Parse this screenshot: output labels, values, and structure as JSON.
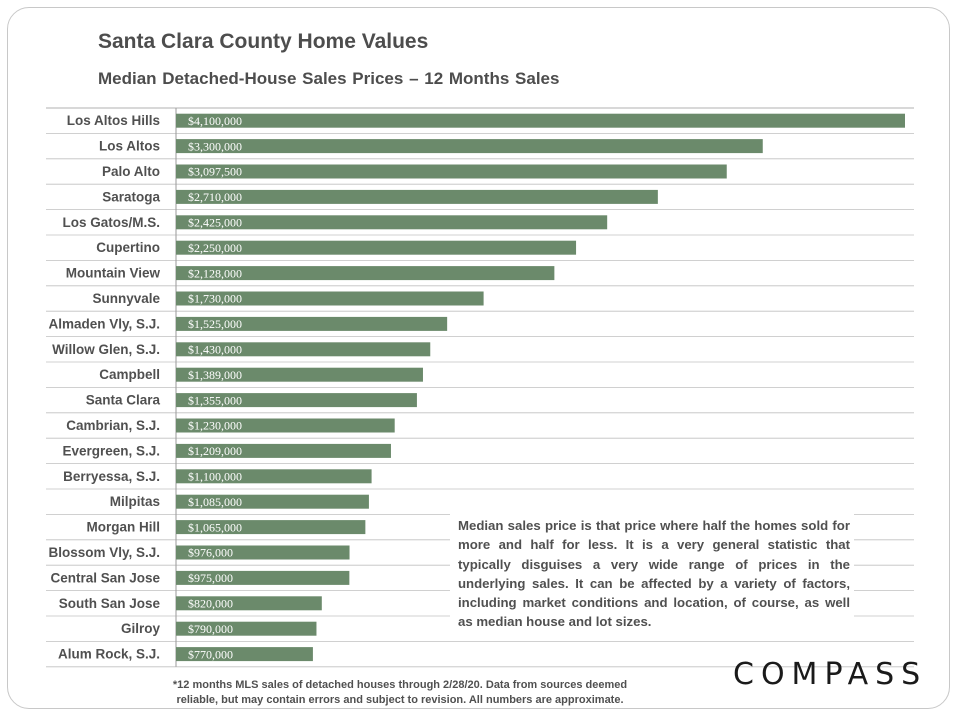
{
  "page": {
    "title": "Santa Clara County Home Values",
    "subtitle": "Median Detached-House  Sales Prices – 12 Months  Sales",
    "note": "Median sales price is that price where half the homes sold for more and half for less. It is a very general statistic that typically disguises a very wide range of prices in the underlying sales. It can be affected by a variety of factors, including market conditions and location, of course, as well as median house and lot sizes.",
    "footnote_line1": "*12 months MLS sales of detached houses through 2/28/20. Data from sources deemed",
    "footnote_line2": "reliable, but may contain errors and subject to revision. All numbers are approximate.",
    "logo": "COMPASS"
  },
  "colors": {
    "bar": "#6b8a6b",
    "gridline": "#c0c0c0",
    "label": "#505050"
  },
  "chart_data": {
    "type": "bar",
    "orientation": "horizontal",
    "title": "Santa Clara County Home Values",
    "subtitle": "Median Detached-House  Sales Prices – 12 Months  Sales",
    "xlabel": "",
    "ylabel": "",
    "xlim": [
      0,
      4100000
    ],
    "grid": true,
    "categories": [
      "Los Altos Hills",
      "Los Altos",
      "Palo Alto",
      "Saratoga",
      "Los Gatos/M.S.",
      "Cupertino",
      "Mountain View",
      "Sunnyvale",
      "Almaden Vly, S.J.",
      "Willow Glen, S.J.",
      "Campbell",
      "Santa Clara",
      "Cambrian, S.J.",
      "Evergreen, S.J.",
      "Berryessa, S.J.",
      "Milpitas",
      "Morgan Hill",
      "Blossom Vly, S.J.",
      "Central San Jose",
      "South San Jose",
      "Gilroy",
      "Alum Rock, S.J."
    ],
    "values": [
      4100000,
      3300000,
      3097500,
      2710000,
      2425000,
      2250000,
      2128000,
      1730000,
      1525000,
      1430000,
      1389000,
      1355000,
      1230000,
      1209000,
      1100000,
      1085000,
      1065000,
      976000,
      975000,
      820000,
      790000,
      770000
    ],
    "value_labels": [
      "$4,100,000",
      "$3,300,000",
      "$3,097,500",
      "$2,710,000",
      "$2,425,000",
      "$2,250,000",
      "$2,128,000",
      "$1,730,000",
      "$1,525,000",
      "$1,430,000",
      "$1,389,000",
      "$1,355,000",
      "$1,230,000",
      "$1,209,000",
      "$1,100,000",
      "$1,085,000",
      "$1,065,000",
      "$976,000",
      "$975,000",
      "$820,000",
      "$790,000",
      "$770,000"
    ]
  }
}
